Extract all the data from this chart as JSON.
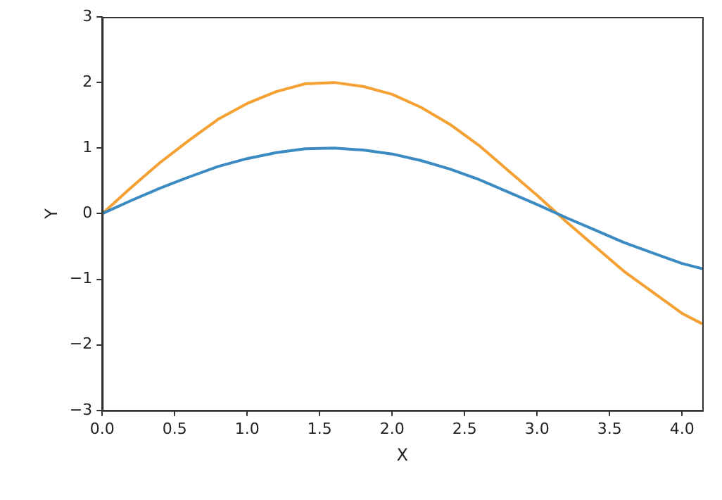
{
  "chart_data": {
    "type": "line",
    "xlabel": "X",
    "ylabel": "Y",
    "x": [
      0,
      0.2,
      0.4,
      0.6,
      0.8,
      1.0,
      1.2,
      1.4,
      1.6,
      1.8,
      2.0,
      2.2,
      2.4,
      2.6,
      2.8,
      3.0,
      3.2,
      3.4,
      3.6,
      3.8,
      4.0,
      4.14
    ],
    "series": [
      {
        "color": "#3b8bc2",
        "values": [
          0,
          0.2,
          0.39,
          0.56,
          0.72,
          0.84,
          0.93,
          0.99,
          1.0,
          0.97,
          0.91,
          0.81,
          0.68,
          0.52,
          0.33,
          0.14,
          -0.06,
          -0.25,
          -0.44,
          -0.6,
          -0.76,
          -0.84
        ]
      },
      {
        "color": "#f5a033",
        "values": [
          0,
          0.4,
          0.78,
          1.12,
          1.44,
          1.68,
          1.86,
          1.98,
          2.0,
          1.94,
          1.82,
          1.62,
          1.36,
          1.04,
          0.66,
          0.28,
          -0.12,
          -0.5,
          -0.88,
          -1.2,
          -1.52,
          -1.68
        ]
      }
    ],
    "xlim": [
      0,
      4.14
    ],
    "xticks": [
      {
        "value": 0,
        "label": "0.0"
      },
      {
        "value": 0.5,
        "label": "0.5"
      },
      {
        "value": 1,
        "label": "1.0"
      },
      {
        "value": 1.5,
        "label": "1.5"
      },
      {
        "value": 2,
        "label": "2.0"
      },
      {
        "value": 2.5,
        "label": "2.5"
      },
      {
        "value": 3,
        "label": "3.0"
      },
      {
        "value": 3.5,
        "label": "3.5"
      },
      {
        "value": 4,
        "label": "4.0"
      }
    ],
    "ylim": [
      -3,
      3
    ],
    "yticks": [
      {
        "value": -3,
        "label": "−3"
      },
      {
        "value": -2,
        "label": "−2"
      },
      {
        "value": -1,
        "label": "−1"
      },
      0,
      1,
      2,
      3
    ],
    "grid": false,
    "legend": false,
    "marker": "none",
    "line_style": "solid"
  }
}
